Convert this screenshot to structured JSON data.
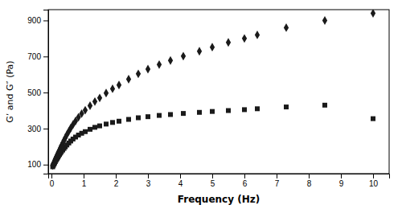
{
  "chart_data": {
    "type": "scatter",
    "xlabel": "Frequency (Hz)",
    "ylabel": "G’ and G″ (Pa)",
    "color": "#1a1a1a",
    "xlim": [
      -0.1,
      10.5
    ],
    "ylim": [
      50,
      960
    ],
    "xticks": [
      0,
      1,
      2,
      3,
      4,
      5,
      6,
      7,
      8,
      9,
      10
    ],
    "yticks": [
      100,
      300,
      500,
      700,
      900
    ],
    "x": [
      0.04,
      0.06,
      0.08,
      0.1,
      0.12,
      0.14,
      0.16,
      0.18,
      0.2,
      0.22,
      0.25,
      0.28,
      0.31,
      0.35,
      0.39,
      0.43,
      0.48,
      0.54,
      0.6,
      0.67,
      0.75,
      0.84,
      0.94,
      1.05,
      1.2,
      1.35,
      1.5,
      1.7,
      1.9,
      2.1,
      2.4,
      2.7,
      3.0,
      3.35,
      3.7,
      4.1,
      4.6,
      5.0,
      5.5,
      6.0,
      6.4,
      7.3,
      8.5,
      10.0
    ],
    "series": [
      {
        "marker": "diamond",
        "values": [
          95,
          105,
          113,
          121,
          130,
          138,
          146,
          154,
          162,
          170,
          181,
          193,
          205,
          219,
          234,
          249,
          266,
          285,
          303,
          322,
          342,
          363,
          383,
          402,
          427,
          450,
          470,
          497,
          521,
          542,
          574,
          604,
          630,
          655,
          678,
          702,
          729,
          752,
          778,
          800,
          820,
          860,
          900,
          940
        ]
      },
      {
        "marker": "square",
        "values": [
          88,
          96,
          103,
          110,
          117,
          124,
          130,
          136,
          142,
          148,
          156,
          164,
          172,
          181,
          190,
          199,
          209,
          220,
          231,
          242,
          253,
          264,
          274,
          283,
          296,
          307,
          315,
          325,
          334,
          341,
          351,
          360,
          366,
          373,
          378,
          384,
          390,
          395,
          400,
          405,
          410,
          420,
          430,
          355
        ]
      }
    ]
  }
}
